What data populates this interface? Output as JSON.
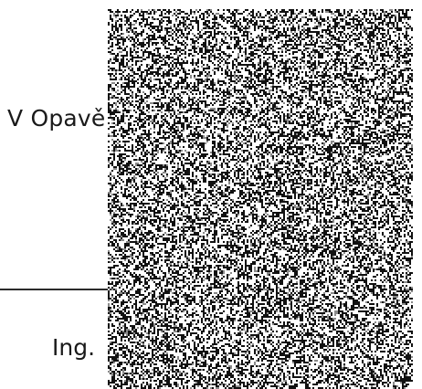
{
  "document": {
    "place_date_prefix": "V Opavě",
    "signatory_title_prefix": "Ing."
  },
  "redaction": {
    "type": "noise-redaction",
    "colors": {
      "dark": "#111111",
      "light": "#ffffff",
      "mid": "#8a8a8a"
    }
  }
}
